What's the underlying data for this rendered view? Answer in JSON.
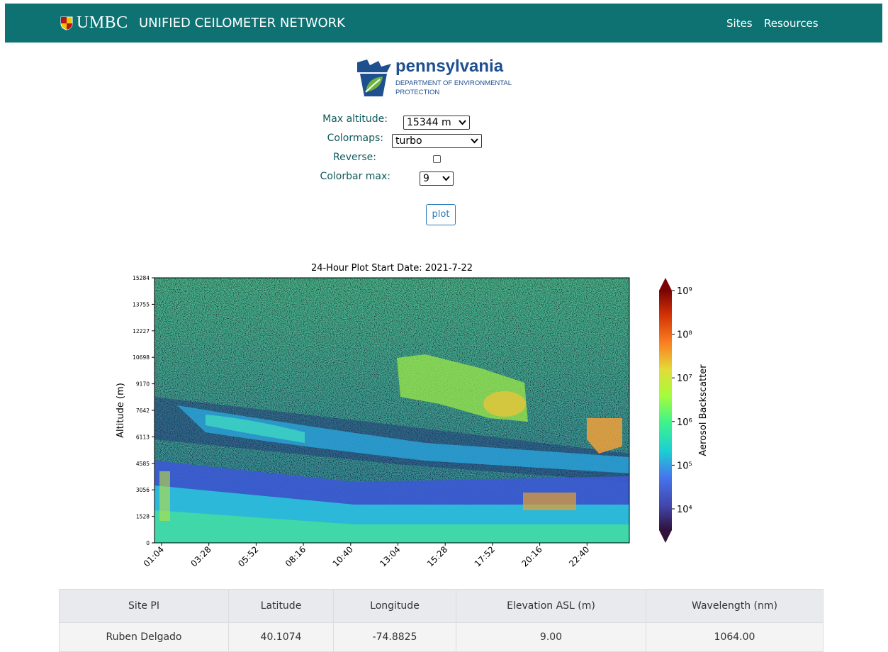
{
  "header": {
    "brand": "UMBC",
    "title": "UNIFIED CEILOMETER NETWORK",
    "nav": [
      "Sites",
      "Resources"
    ]
  },
  "logo": {
    "name": "pennsylvania",
    "subtitle": [
      "DEPARTMENT OF ENVIRONMENTAL",
      "PROTECTION"
    ]
  },
  "form": {
    "fields": [
      {
        "label": "Max altitude:",
        "value": "15344 m"
      },
      {
        "label": "Colormaps:",
        "value": "turbo"
      },
      {
        "label": "Reverse:"
      },
      {
        "label": "Colorbar max:",
        "value": "9"
      }
    ],
    "button": "plot"
  },
  "plot": {
    "title": "24-Hour Plot Start Date: 2021-7-22",
    "y_label": "Altitude (m)",
    "y_ticks": [
      "0",
      "1528",
      "3056",
      "4585",
      "6113",
      "7642",
      "9170",
      "10698",
      "12227",
      "13755",
      "15284"
    ],
    "x_ticks": [
      "01:04",
      "03:28",
      "05:52",
      "08:16",
      "10:40",
      "13:04",
      "15:28",
      "17:52",
      "20:16",
      "22:40"
    ],
    "colorbar_label": "Aerosol Backscatter",
    "colorbar_ticks": [
      "10⁹",
      "10⁸",
      "10⁷",
      "10⁶",
      "10⁵",
      "10⁴"
    ]
  },
  "table": {
    "headers": [
      "Site PI",
      "Latitude",
      "Longitude",
      "Elevation ASL (m)",
      "Wavelength (nm)"
    ],
    "rows": [
      [
        "Ruben Delgado",
        "40.1074",
        "-74.8825",
        "9.00",
        "1064.00"
      ]
    ]
  }
}
